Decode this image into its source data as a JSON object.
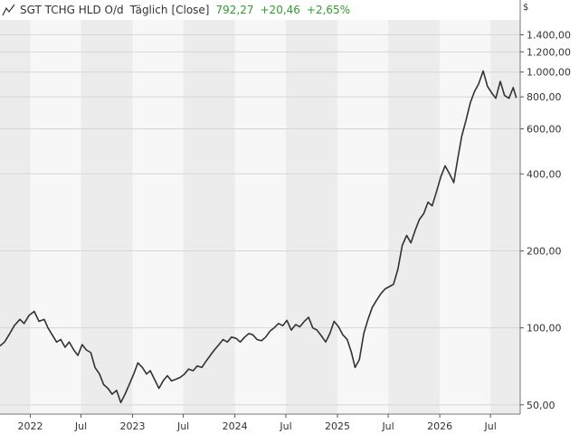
{
  "header": {
    "name": "SGT TCHG HLD O/d",
    "interval": "Täglich",
    "mode": "[Close]",
    "last": "792,27",
    "change_abs": "+20,46",
    "change_pct": "+2,65%",
    "positive_color": "#2e9e2e"
  },
  "chart_data": {
    "type": "line",
    "title": "SGT TCHG HLD O/d",
    "currency": "$",
    "yscale": "log",
    "ylim": [
      46,
      1600
    ],
    "yticks": [
      {
        "value": 50,
        "label": "50,00"
      },
      {
        "value": 100,
        "label": "100,00"
      },
      {
        "value": 200,
        "label": "200,00"
      },
      {
        "value": 400,
        "label": "400,00"
      },
      {
        "value": 600,
        "label": "600,00"
      },
      {
        "value": 800,
        "label": "800,00"
      },
      {
        "value": 1000,
        "label": "1.000,00"
      },
      {
        "value": 1200,
        "label": "1.200,00"
      },
      {
        "value": 1400,
        "label": "1.400,00"
      }
    ],
    "xlim": [
      "2021-09-15",
      "2026-10-15"
    ],
    "xticks": [
      {
        "date": "2022-01-01",
        "label": "2022"
      },
      {
        "date": "2022-07-01",
        "label": "Jul"
      },
      {
        "date": "2023-01-01",
        "label": "2023"
      },
      {
        "date": "2023-07-01",
        "label": "Jul"
      },
      {
        "date": "2024-01-01",
        "label": "2024"
      },
      {
        "date": "2024-07-01",
        "label": "Jul"
      },
      {
        "date": "2025-01-01",
        "label": "2025"
      },
      {
        "date": "2025-07-01",
        "label": "Jul"
      },
      {
        "date": "2026-01-01",
        "label": "2026"
      },
      {
        "date": "2026-07-01",
        "label": "Jul"
      }
    ],
    "grid": true,
    "line_color": "#333333",
    "series": [
      {
        "points": [
          [
            "2021-09-15",
            85
          ],
          [
            "2021-10-01",
            88
          ],
          [
            "2021-10-20",
            95
          ],
          [
            "2021-11-05",
            102
          ],
          [
            "2021-11-25",
            108
          ],
          [
            "2021-12-10",
            104
          ],
          [
            "2021-12-28",
            112
          ],
          [
            "2022-01-15",
            116
          ],
          [
            "2022-02-01",
            106
          ],
          [
            "2022-02-20",
            108
          ],
          [
            "2022-03-05",
            100
          ],
          [
            "2022-03-20",
            94
          ],
          [
            "2022-04-05",
            88
          ],
          [
            "2022-04-20",
            90
          ],
          [
            "2022-05-05",
            84
          ],
          [
            "2022-05-20",
            88
          ],
          [
            "2022-06-05",
            82
          ],
          [
            "2022-06-20",
            78
          ],
          [
            "2022-07-05",
            86
          ],
          [
            "2022-07-20",
            82
          ],
          [
            "2022-08-05",
            80
          ],
          [
            "2022-08-20",
            70
          ],
          [
            "2022-09-05",
            66
          ],
          [
            "2022-09-20",
            60
          ],
          [
            "2022-10-05",
            58
          ],
          [
            "2022-10-20",
            55
          ],
          [
            "2022-11-05",
            57
          ],
          [
            "2022-11-20",
            51
          ],
          [
            "2022-12-05",
            55
          ],
          [
            "2022-12-20",
            60
          ],
          [
            "2023-01-05",
            66
          ],
          [
            "2023-01-20",
            73
          ],
          [
            "2023-02-05",
            70
          ],
          [
            "2023-02-20",
            66
          ],
          [
            "2023-03-05",
            68
          ],
          [
            "2023-03-20",
            63
          ],
          [
            "2023-04-05",
            58
          ],
          [
            "2023-04-20",
            62
          ],
          [
            "2023-05-05",
            65
          ],
          [
            "2023-05-20",
            62
          ],
          [
            "2023-06-05",
            63
          ],
          [
            "2023-06-20",
            64
          ],
          [
            "2023-07-05",
            66
          ],
          [
            "2023-07-20",
            69
          ],
          [
            "2023-08-05",
            68
          ],
          [
            "2023-08-20",
            71
          ],
          [
            "2023-09-05",
            70
          ],
          [
            "2023-09-20",
            74
          ],
          [
            "2023-10-05",
            78
          ],
          [
            "2023-10-20",
            82
          ],
          [
            "2023-11-05",
            86
          ],
          [
            "2023-11-20",
            90
          ],
          [
            "2023-12-05",
            88
          ],
          [
            "2023-12-20",
            92
          ],
          [
            "2024-01-05",
            91
          ],
          [
            "2024-01-20",
            88
          ],
          [
            "2024-02-05",
            92
          ],
          [
            "2024-02-20",
            95
          ],
          [
            "2024-03-05",
            94
          ],
          [
            "2024-03-20",
            90
          ],
          [
            "2024-04-05",
            89
          ],
          [
            "2024-04-20",
            92
          ],
          [
            "2024-05-05",
            97
          ],
          [
            "2024-05-20",
            100
          ],
          [
            "2024-06-05",
            104
          ],
          [
            "2024-06-20",
            102
          ],
          [
            "2024-07-05",
            107
          ],
          [
            "2024-07-20",
            98
          ],
          [
            "2024-08-05",
            103
          ],
          [
            "2024-08-20",
            101
          ],
          [
            "2024-09-05",
            106
          ],
          [
            "2024-09-20",
            110
          ],
          [
            "2024-10-05",
            100
          ],
          [
            "2024-10-20",
            98
          ],
          [
            "2024-11-05",
            93
          ],
          [
            "2024-11-20",
            88
          ],
          [
            "2024-12-05",
            95
          ],
          [
            "2024-12-20",
            106
          ],
          [
            "2025-01-05",
            101
          ],
          [
            "2025-01-20",
            94
          ],
          [
            "2025-02-05",
            90
          ],
          [
            "2025-02-20",
            80
          ],
          [
            "2025-03-05",
            70
          ],
          [
            "2025-03-20",
            75
          ],
          [
            "2025-04-05",
            95
          ],
          [
            "2025-04-20",
            108
          ],
          [
            "2025-05-05",
            120
          ],
          [
            "2025-05-20",
            128
          ],
          [
            "2025-06-05",
            136
          ],
          [
            "2025-06-20",
            142
          ],
          [
            "2025-07-05",
            145
          ],
          [
            "2025-07-20",
            148
          ],
          [
            "2025-08-05",
            170
          ],
          [
            "2025-08-20",
            210
          ],
          [
            "2025-09-05",
            230
          ],
          [
            "2025-09-20",
            215
          ],
          [
            "2025-10-05",
            240
          ],
          [
            "2025-10-20",
            265
          ],
          [
            "2025-11-05",
            280
          ],
          [
            "2025-11-20",
            310
          ],
          [
            "2025-12-05",
            300
          ],
          [
            "2025-12-20",
            340
          ],
          [
            "2026-01-05",
            390
          ],
          [
            "2026-01-20",
            430
          ],
          [
            "2026-02-05",
            400
          ],
          [
            "2026-02-20",
            370
          ],
          [
            "2026-03-05",
            450
          ],
          [
            "2026-03-20",
            560
          ],
          [
            "2026-04-05",
            650
          ],
          [
            "2026-04-20",
            760
          ],
          [
            "2026-05-05",
            840
          ],
          [
            "2026-05-20",
            900
          ],
          [
            "2026-06-05",
            1010
          ],
          [
            "2026-06-20",
            880
          ],
          [
            "2026-07-05",
            830
          ],
          [
            "2026-07-20",
            790
          ],
          [
            "2026-08-05",
            920
          ],
          [
            "2026-08-20",
            810
          ],
          [
            "2026-09-05",
            790
          ],
          [
            "2026-09-20",
            870
          ],
          [
            "2026-10-01",
            792.27
          ]
        ]
      }
    ]
  }
}
